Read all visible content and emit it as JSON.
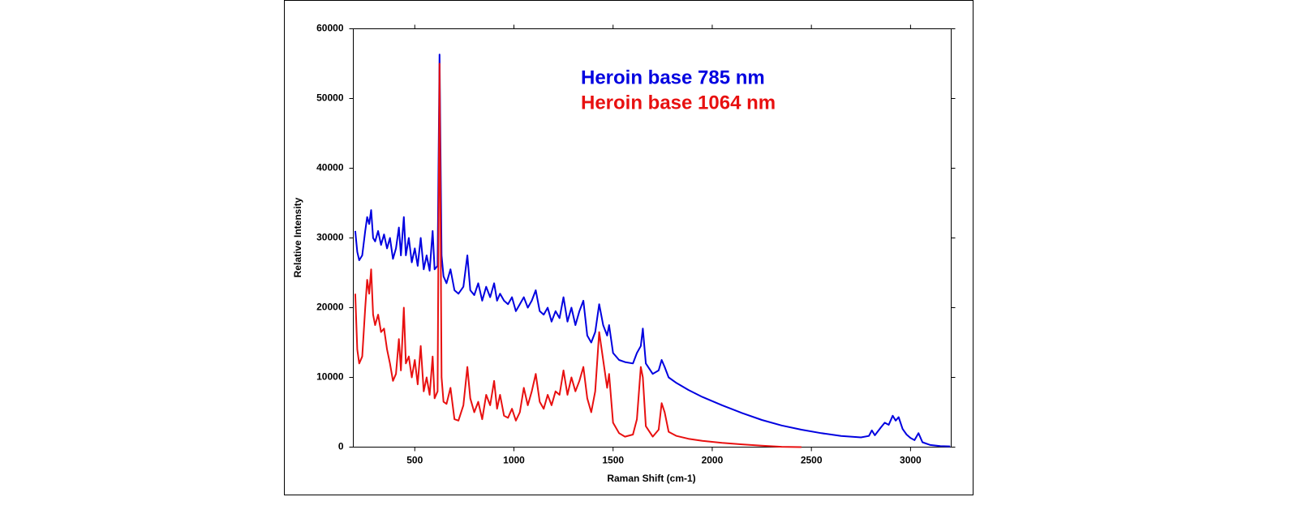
{
  "chart_data": {
    "type": "line",
    "xlabel": "Raman Shift (cm-1)",
    "ylabel": "Relative Intensity",
    "xlim": [
      190,
      3205
    ],
    "ylim": [
      0,
      60000
    ],
    "xticks": [
      500,
      1000,
      1500,
      2000,
      2500,
      3000
    ],
    "yticks": [
      0,
      10000,
      20000,
      30000,
      40000,
      50000,
      60000
    ],
    "legend": "top",
    "x": [
      200,
      210,
      220,
      235,
      250,
      260,
      270,
      280,
      290,
      300,
      315,
      330,
      345,
      360,
      375,
      390,
      405,
      420,
      430,
      445,
      455,
      470,
      485,
      500,
      515,
      530,
      545,
      560,
      575,
      590,
      600,
      615,
      625,
      635,
      645,
      660,
      680,
      700,
      720,
      745,
      765,
      780,
      800,
      820,
      840,
      860,
      880,
      900,
      915,
      930,
      950,
      970,
      990,
      1010,
      1030,
      1050,
      1070,
      1090,
      1110,
      1130,
      1150,
      1170,
      1190,
      1210,
      1230,
      1250,
      1270,
      1290,
      1310,
      1330,
      1350,
      1370,
      1390,
      1410,
      1430,
      1450,
      1470,
      1480,
      1500,
      1530,
      1560,
      1600,
      1620,
      1640,
      1650,
      1665,
      1700,
      1730,
      1745,
      1760,
      1780,
      1820,
      1880,
      1950,
      2050,
      2150,
      2250,
      2350,
      2450,
      2550,
      2650,
      2750,
      2790,
      2805,
      2820,
      2850,
      2870,
      2890,
      2910,
      2925,
      2940,
      2960,
      2980,
      3000,
      3020,
      3040,
      3060,
      3100,
      3150,
      3200
    ],
    "series": [
      {
        "name": "Heroin base 785 nm",
        "color": "#0000e0",
        "values": [
          31000,
          28000,
          26800,
          27500,
          31000,
          33000,
          32000,
          34000,
          30000,
          29500,
          31000,
          29000,
          30500,
          28500,
          30000,
          27000,
          28500,
          31500,
          27500,
          33000,
          27500,
          30000,
          26500,
          28500,
          26000,
          30000,
          25500,
          27500,
          25300,
          31000,
          25500,
          26000,
          56300,
          27500,
          24500,
          23500,
          25500,
          22500,
          22000,
          23000,
          27500,
          22500,
          21800,
          23500,
          21000,
          23000,
          21500,
          23500,
          21000,
          22000,
          21000,
          20500,
          21500,
          19500,
          20500,
          21500,
          20000,
          21000,
          22500,
          19500,
          19000,
          20000,
          18000,
          19500,
          18500,
          21500,
          18000,
          20000,
          17500,
          19500,
          21000,
          16000,
          15000,
          16500,
          20500,
          17500,
          16000,
          17500,
          13500,
          12500,
          12200,
          12000,
          13500,
          14500,
          17000,
          12000,
          10500,
          11000,
          12500,
          11500,
          10000,
          9200,
          8200,
          7200,
          6000,
          4900,
          3900,
          3100,
          2500,
          2000,
          1600,
          1400,
          1600,
          2400,
          1700,
          2800,
          3500,
          3200,
          4500,
          3800,
          4300,
          2600,
          1800,
          1300,
          1000,
          2000,
          700,
          300,
          150,
          100
        ]
      },
      {
        "name": "Heroin base 1064 nm",
        "color": "#e81010",
        "values": [
          22000,
          14000,
          12000,
          13000,
          20000,
          24000,
          22000,
          25500,
          19000,
          17500,
          19000,
          16500,
          17000,
          14000,
          12000,
          9500,
          10500,
          15500,
          11000,
          20000,
          12000,
          13000,
          10000,
          12500,
          9000,
          14500,
          8000,
          10000,
          7500,
          13000,
          7000,
          8000,
          55000,
          10000,
          6500,
          6200,
          8500,
          4000,
          3800,
          6000,
          11500,
          7000,
          5000,
          6500,
          4000,
          7500,
          6000,
          9500,
          5500,
          7500,
          4500,
          4200,
          5500,
          3800,
          5000,
          8500,
          6000,
          8000,
          10500,
          6500,
          5500,
          7500,
          6000,
          8000,
          7500,
          11000,
          7500,
          10000,
          8000,
          9500,
          11500,
          7000,
          5000,
          8000,
          16500,
          12500,
          8500,
          10500,
          3500,
          2000,
          1500,
          1800,
          4000,
          11500,
          10000,
          3000,
          1500,
          2500,
          6300,
          5000,
          2200,
          1600,
          1200,
          900,
          600,
          400,
          200,
          50,
          0,
          null,
          null,
          null,
          null,
          null,
          null,
          null,
          null,
          null,
          null,
          null,
          null,
          null,
          null,
          null,
          null,
          null,
          null,
          null,
          null,
          null
        ]
      }
    ]
  }
}
